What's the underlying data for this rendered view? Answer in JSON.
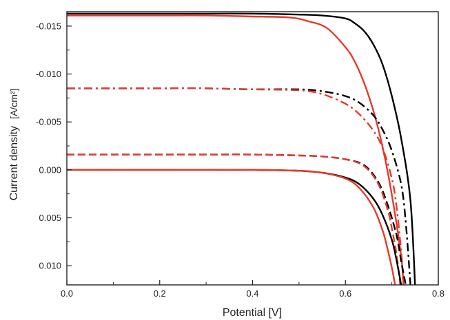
{
  "chart_data": {
    "type": "line",
    "xlabel": "Potential [V]",
    "ylabel": "Current density",
    "ylabel_unit": "[A/cm²]",
    "xlim": [
      0.0,
      0.8
    ],
    "ylim": [
      0.012,
      -0.0165
    ],
    "y_axis_inverted": true,
    "x_ticks": [
      "0.0",
      "0.2",
      "0.4",
      "0.6",
      "0.8"
    ],
    "y_ticks": [
      "-0.015",
      "-0.010",
      "-0.005",
      "0.000",
      "0.005",
      "0.010"
    ],
    "grid": false,
    "legend": "none",
    "series": [
      {
        "color": "#000000",
        "line_style": "solid",
        "x": [
          0.0,
          0.1,
          0.2,
          0.3,
          0.4,
          0.5,
          0.55,
          0.6,
          0.62,
          0.64,
          0.66,
          0.68,
          0.7,
          0.72,
          0.74,
          0.75
        ],
        "y": [
          -0.0163,
          -0.0163,
          -0.0163,
          -0.0163,
          -0.0163,
          -0.0162,
          -0.0161,
          -0.0158,
          -0.0153,
          -0.0145,
          -0.0131,
          -0.011,
          -0.0077,
          -0.0033,
          0.0032,
          0.012
        ]
      },
      {
        "color": "#e8392b",
        "line_style": "solid",
        "x": [
          0.0,
          0.1,
          0.2,
          0.3,
          0.4,
          0.48,
          0.52,
          0.56,
          0.6,
          0.62,
          0.64,
          0.66,
          0.68,
          0.7,
          0.72,
          0.725
        ],
        "y": [
          -0.0161,
          -0.0161,
          -0.0161,
          -0.0161,
          -0.016,
          -0.0159,
          -0.0155,
          -0.0148,
          -0.0128,
          -0.0113,
          -0.0091,
          -0.0062,
          -0.0024,
          0.0026,
          0.009,
          0.012
        ]
      },
      {
        "color": "#000000",
        "line_style": "dash-dot",
        "x": [
          0.0,
          0.1,
          0.2,
          0.3,
          0.4,
          0.5,
          0.55,
          0.6,
          0.63,
          0.66,
          0.68,
          0.7,
          0.72,
          0.73,
          0.74
        ],
        "y": [
          -0.0085,
          -0.0085,
          -0.0085,
          -0.0085,
          -0.0084,
          -0.0084,
          -0.0082,
          -0.0077,
          -0.007,
          -0.0057,
          -0.0042,
          -0.002,
          0.0015,
          0.0055,
          0.012
        ]
      },
      {
        "color": "#e8392b",
        "line_style": "dash-dot",
        "x": [
          0.0,
          0.1,
          0.2,
          0.3,
          0.4,
          0.5,
          0.55,
          0.6,
          0.63,
          0.66,
          0.68,
          0.7,
          0.71,
          0.72,
          0.725
        ],
        "y": [
          -0.0085,
          -0.0085,
          -0.0085,
          -0.0085,
          -0.0084,
          -0.0083,
          -0.0079,
          -0.0069,
          -0.0058,
          -0.0041,
          -0.0023,
          0.0009,
          0.0038,
          0.0085,
          0.012
        ]
      },
      {
        "color": "#000000",
        "line_style": "dashed",
        "x": [
          0.0,
          0.1,
          0.2,
          0.3,
          0.4,
          0.5,
          0.55,
          0.6,
          0.64,
          0.67,
          0.69,
          0.71,
          0.72,
          0.73
        ],
        "y": [
          -0.0016,
          -0.0016,
          -0.0016,
          -0.0016,
          -0.0016,
          -0.0015,
          -0.0014,
          -0.0011,
          -0.0005,
          0.0012,
          0.0035,
          0.0068,
          0.0095,
          0.012
        ]
      },
      {
        "color": "#e8392b",
        "line_style": "dashed",
        "x": [
          0.0,
          0.1,
          0.2,
          0.3,
          0.4,
          0.5,
          0.55,
          0.6,
          0.64,
          0.67,
          0.69,
          0.7,
          0.71,
          0.718
        ],
        "y": [
          -0.0016,
          -0.0016,
          -0.0016,
          -0.0016,
          -0.0016,
          -0.0015,
          -0.0014,
          -0.0011,
          -0.0004,
          0.0014,
          0.004,
          0.0061,
          0.0088,
          0.012
        ]
      },
      {
        "color": "#000000",
        "line_style": "solid",
        "x": [
          0.0,
          0.1,
          0.2,
          0.3,
          0.4,
          0.5,
          0.55,
          0.6,
          0.63,
          0.66,
          0.68,
          0.7,
          0.71,
          0.72
        ],
        "y": [
          0.0,
          0.0,
          0.0,
          0.0,
          0.0,
          0.0001,
          0.0003,
          0.0008,
          0.0015,
          0.003,
          0.0047,
          0.0073,
          0.0094,
          0.012
        ]
      },
      {
        "color": "#e8392b",
        "line_style": "solid",
        "x": [
          0.0,
          0.1,
          0.2,
          0.3,
          0.4,
          0.5,
          0.55,
          0.6,
          0.63,
          0.66,
          0.68,
          0.69,
          0.7,
          0.707
        ],
        "y": [
          0.0,
          0.0,
          0.0,
          0.0,
          0.0,
          0.0001,
          0.0003,
          0.0009,
          0.0019,
          0.0039,
          0.0063,
          0.0081,
          0.0102,
          0.012
        ]
      }
    ]
  }
}
